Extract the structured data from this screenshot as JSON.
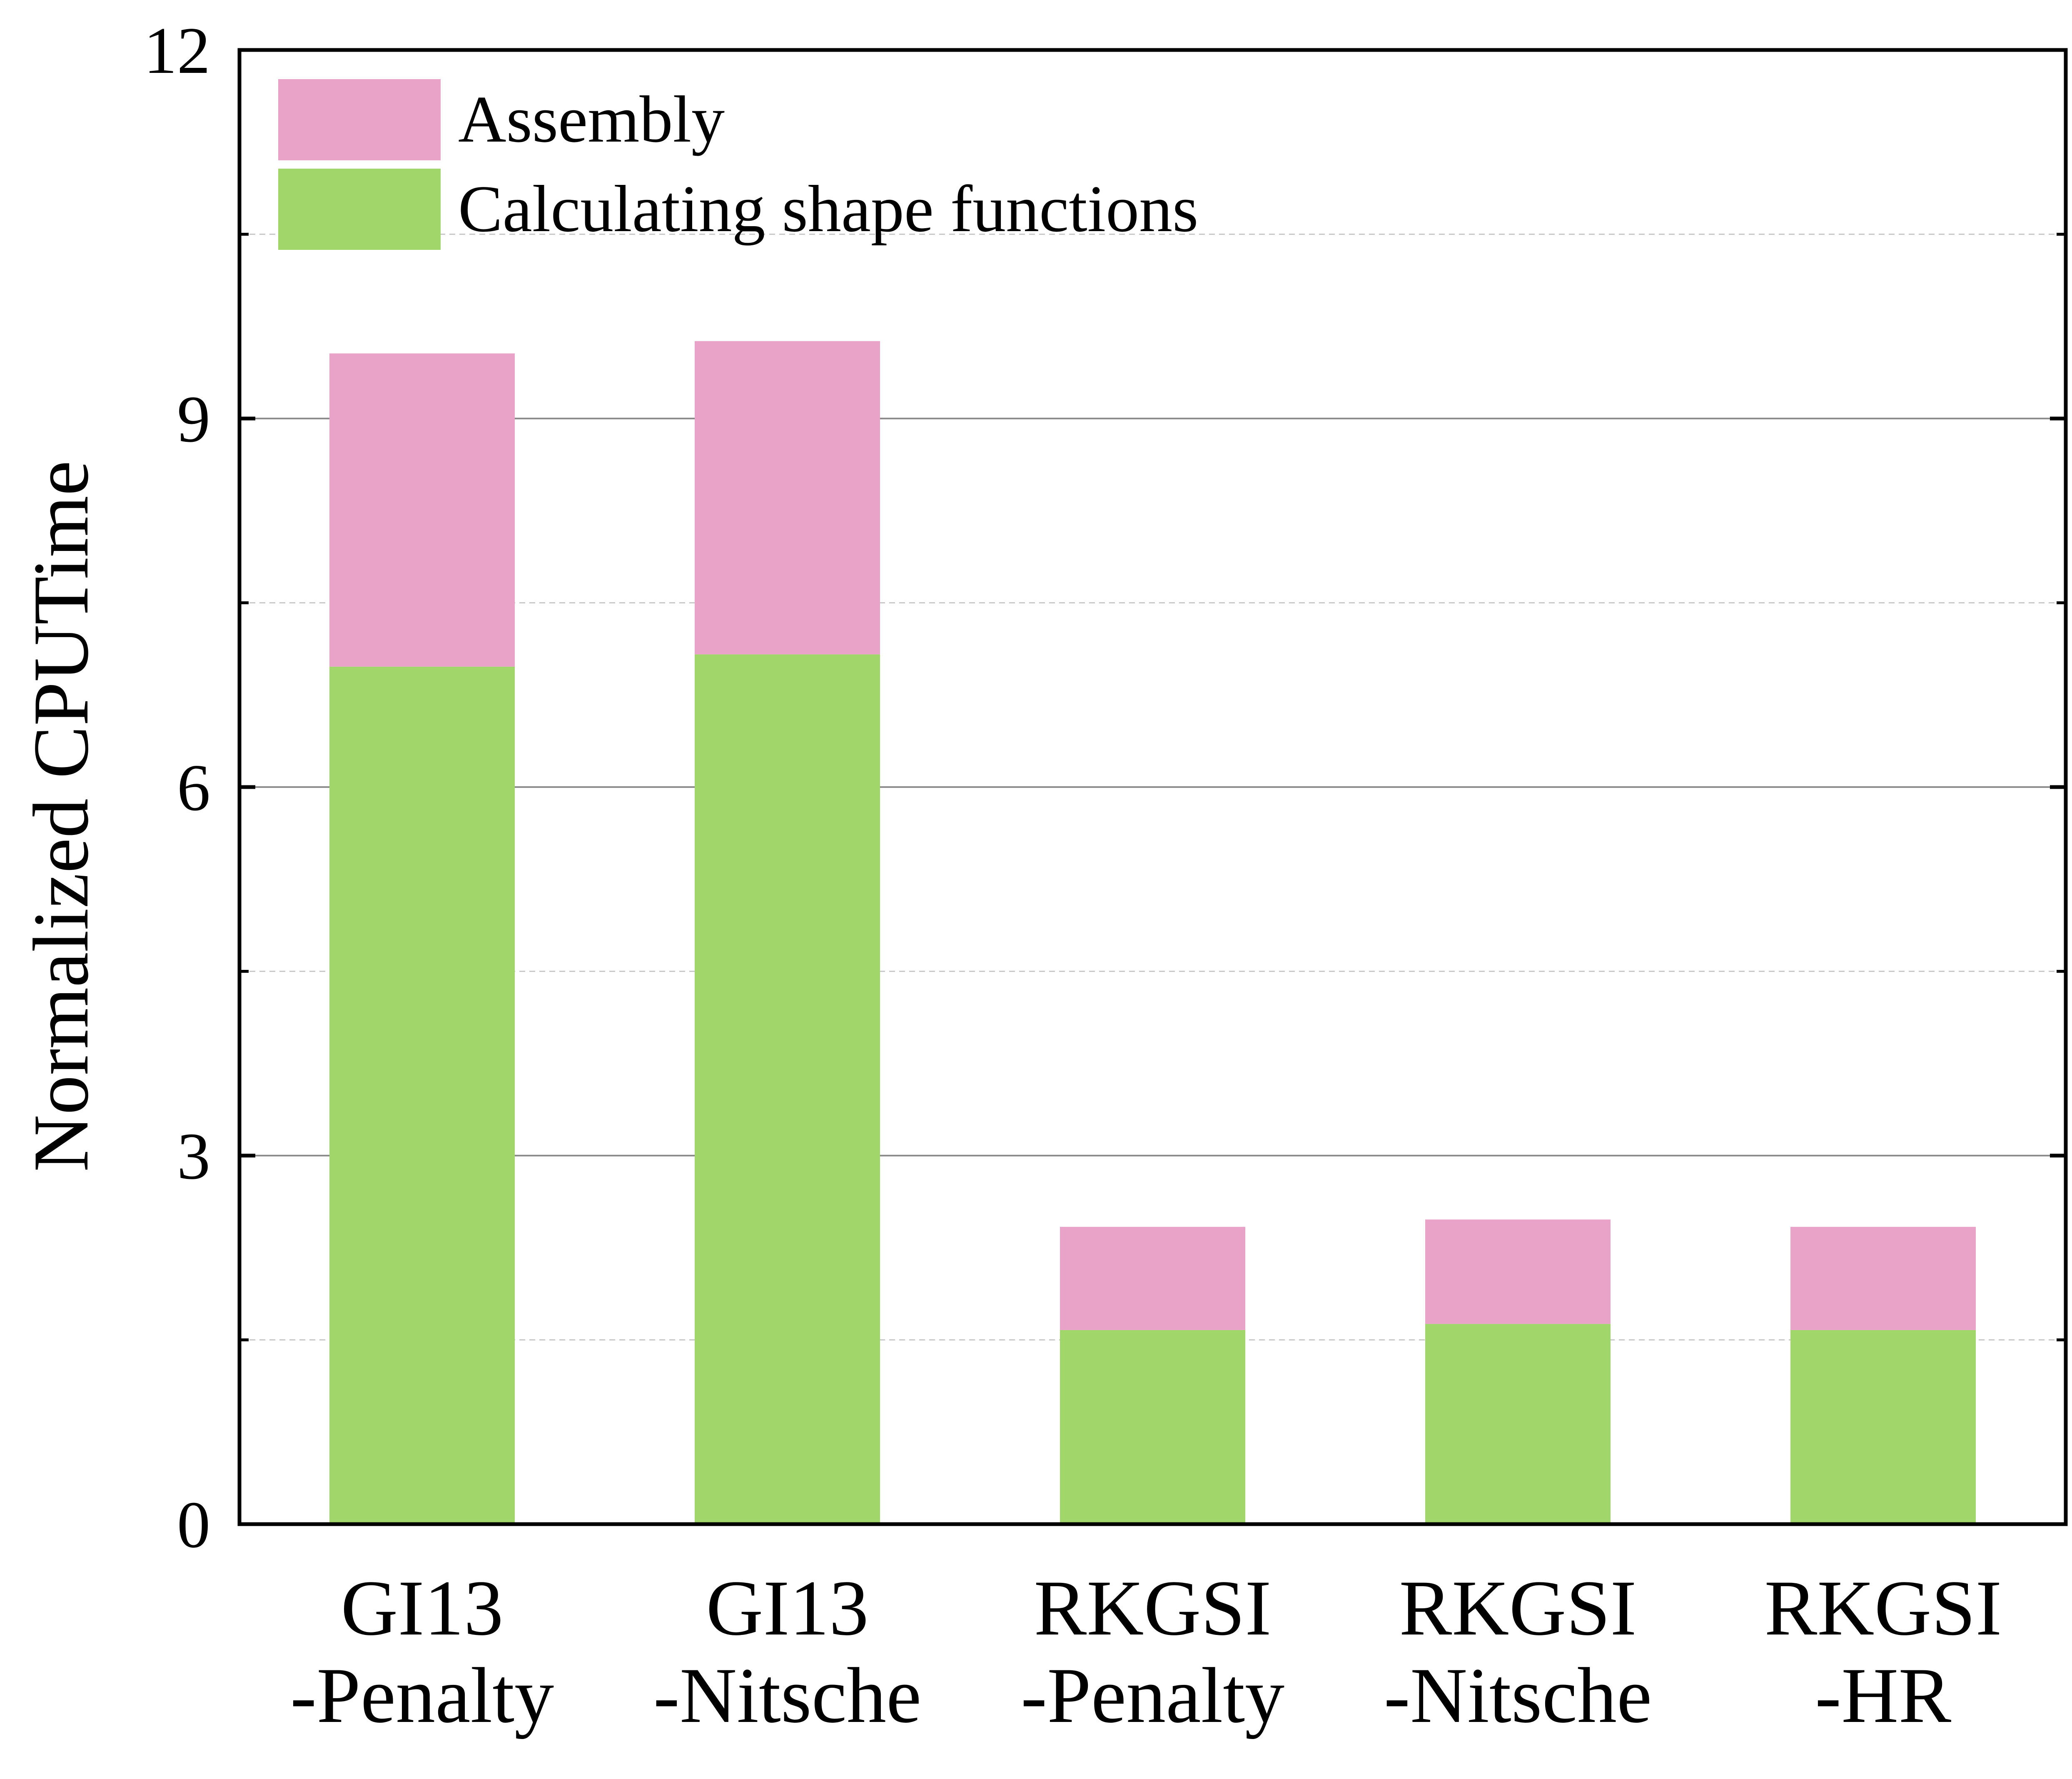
{
  "chart_data": {
    "type": "bar",
    "stacked": true,
    "categories": [
      [
        "GI13",
        "-Penalty"
      ],
      [
        "GI13",
        "-Nitsche"
      ],
      [
        "RKGSI",
        "-Penalty"
      ],
      [
        "RKGSI",
        "-Nitsche"
      ],
      [
        "RKGSI",
        "-HR"
      ]
    ],
    "series": [
      {
        "name": "Calculating shape functions",
        "color": "#a1d76a",
        "values": [
          6.98,
          7.08,
          1.58,
          1.63,
          1.58
        ]
      },
      {
        "name": "Assembly",
        "color": "#e9a3c9",
        "values": [
          2.55,
          2.55,
          0.84,
          0.85,
          0.84
        ]
      }
    ],
    "xlabel": "",
    "ylabel": "Normalized CPUTime",
    "ylim": [
      0,
      12
    ],
    "yticks": [
      0,
      3,
      6,
      9,
      12
    ],
    "minor_gridlines": [
      1.5,
      4.5,
      7.5,
      10.5
    ],
    "grid": true,
    "legend_position": "top-left",
    "legend_order": [
      "Assembly",
      "Calculating shape functions"
    ]
  }
}
